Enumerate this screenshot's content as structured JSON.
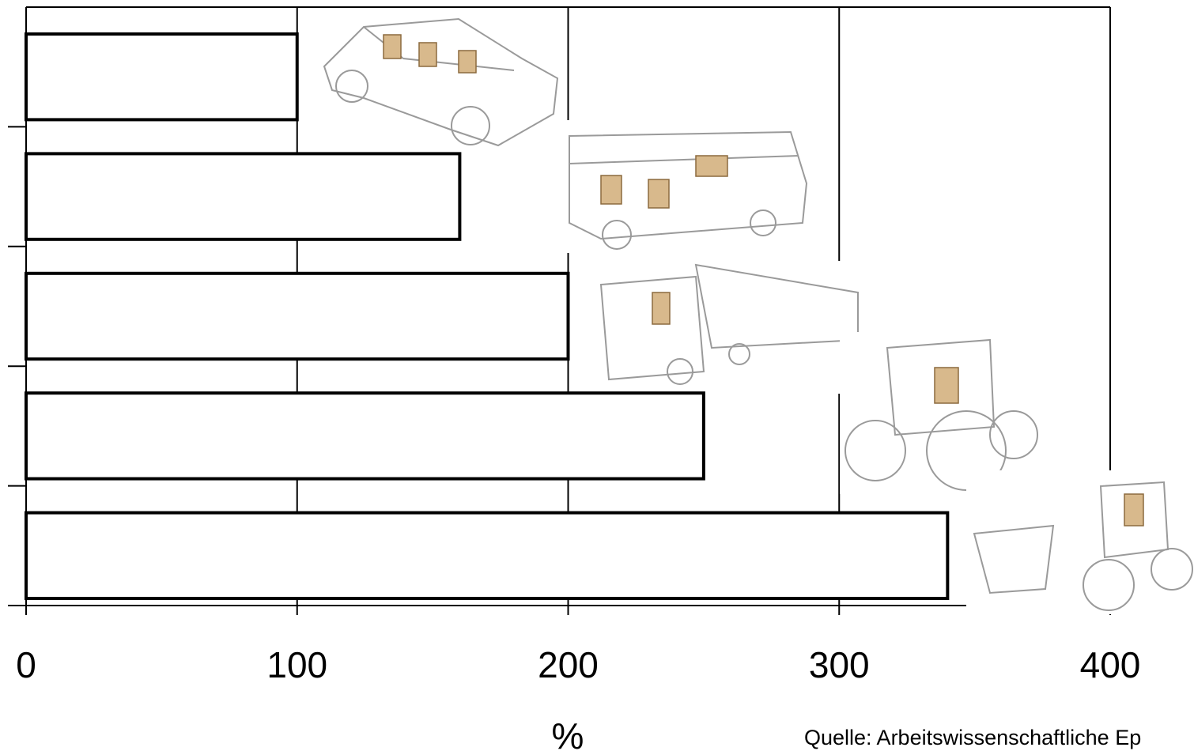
{
  "chart_data": {
    "type": "bar",
    "orientation": "horizontal",
    "categories": [
      "Pkw",
      "Bus",
      "Lkw",
      "Traktor",
      "Radlader"
    ],
    "category_icons": [
      "car-icon",
      "bus-icon",
      "truck-icon",
      "tractor-icon",
      "wheel-loader-icon"
    ],
    "values": [
      100,
      160,
      200,
      250,
      340
    ],
    "xlim": [
      0,
      400
    ],
    "xticks": [
      0,
      100,
      200,
      300,
      400
    ],
    "xlabel": "%",
    "ylabel": "",
    "grid": "vertical",
    "bar_fill": "#ffffff",
    "bar_stroke": "#000000"
  },
  "source": "Quelle: Arbeitswissenschaftliche Ep"
}
